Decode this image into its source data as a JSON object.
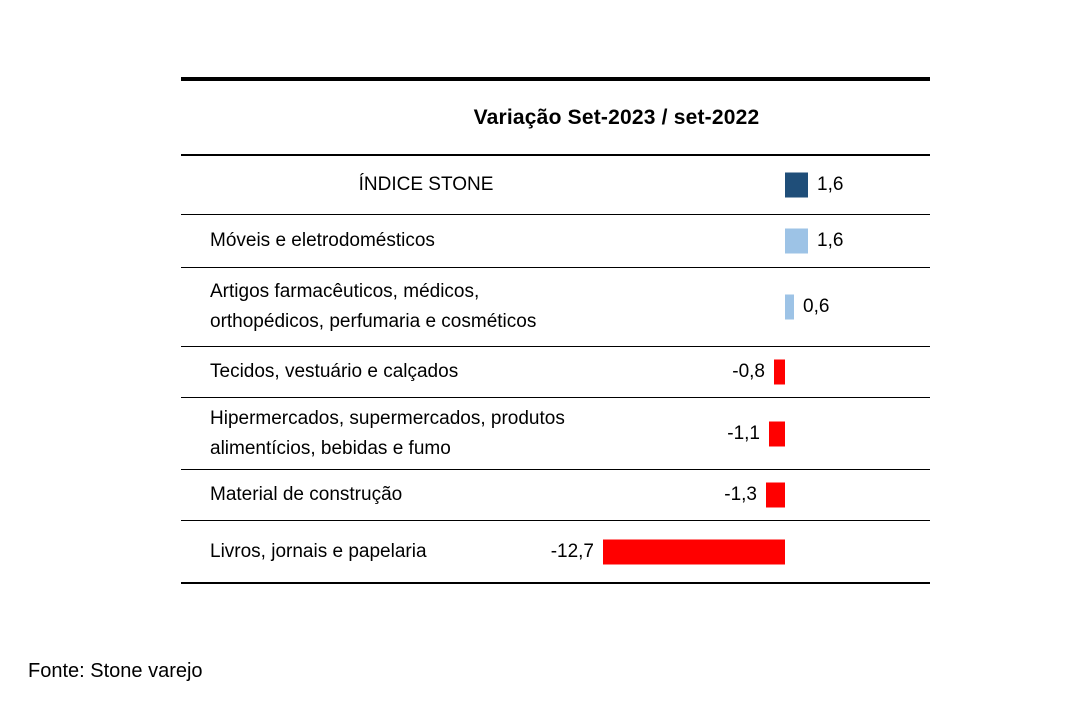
{
  "chart_data": {
    "type": "bar",
    "orientation": "horizontal",
    "title": "Variação Set-2023 / set-2022",
    "categories": [
      "ÍNDICE STONE",
      "Móveis e eletrodomésticos",
      "Artigos farmacêuticos, médicos, ortopédicos, perfumaria e cosméticos",
      "Tecidos, vestuário e calçados",
      "Hipermercados, supermercados, produtos alimentícios, bebidas e fumo",
      "Material de construção",
      "Livros, jornais e papelaria"
    ],
    "categories_display": [
      "ÍNDICE STONE",
      "Móveis e eletrodomésticos",
      "Artigos farmacêuticos, médicos,\northopédicos, perfumaria e cosméticos",
      "Tecidos, vestuário e calçados",
      "Hipermercados, supermercados, produtos\nalimentícios, bebidas e fumo",
      "Material de construção",
      "Livros, jornais e papelaria"
    ],
    "values": [
      1.6,
      1.6,
      0.6,
      -0.8,
      -1.1,
      -1.3,
      -12.7
    ],
    "value_labels": [
      "1,6",
      "1,6",
      "0,6",
      "-0,8",
      "-1,1",
      "-1,3",
      "-12,7"
    ],
    "bar_colors": [
      "#1F4E79",
      "#9DC3E6",
      "#9DC3E6",
      "#FF0000",
      "#FF0000",
      "#FF0000",
      "#FF0000"
    ],
    "colors": {
      "index_positive": "#1F4E79",
      "segment_positive": "#9DC3E6",
      "negative": "#FF0000",
      "rule": "#000000",
      "text": "#000000"
    },
    "xlim": [
      -13.5,
      4.5
    ],
    "grid": false,
    "legend": "none",
    "source": "Fonte: Stone varejo"
  }
}
